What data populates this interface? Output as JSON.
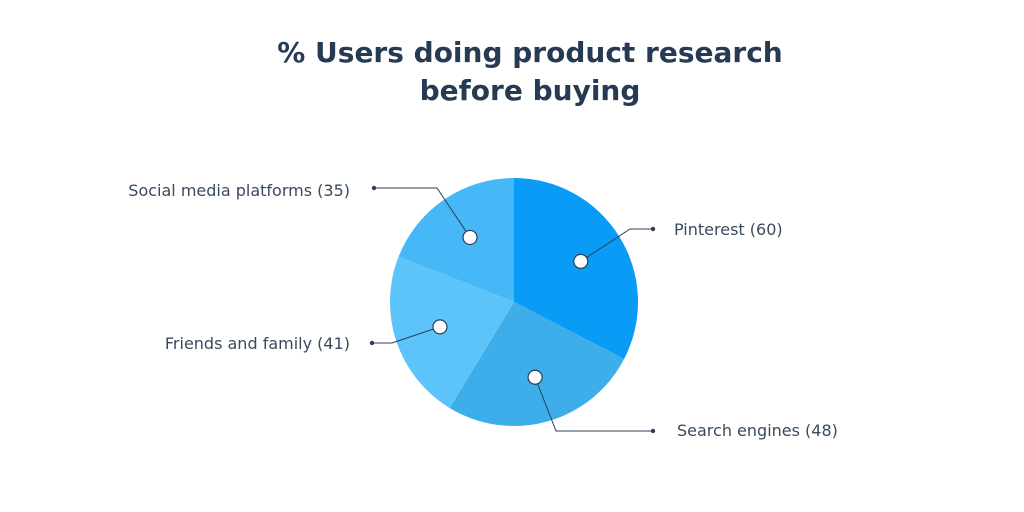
{
  "chart_data": {
    "type": "pie",
    "title": [
      "% Users doing product research",
      "before buying"
    ],
    "slices": [
      {
        "label": "Pinterest (60)",
        "value": 60,
        "color": "#0a9bf7"
      },
      {
        "label": "Search engines (48)",
        "value": 48,
        "color": "#3daee9"
      },
      {
        "label": "Friends and family (41)",
        "value": 41,
        "color": "#5dc4fa"
      },
      {
        "label": "Social media platforms (35)",
        "value": 35,
        "color": "#46b8f7"
      }
    ]
  }
}
